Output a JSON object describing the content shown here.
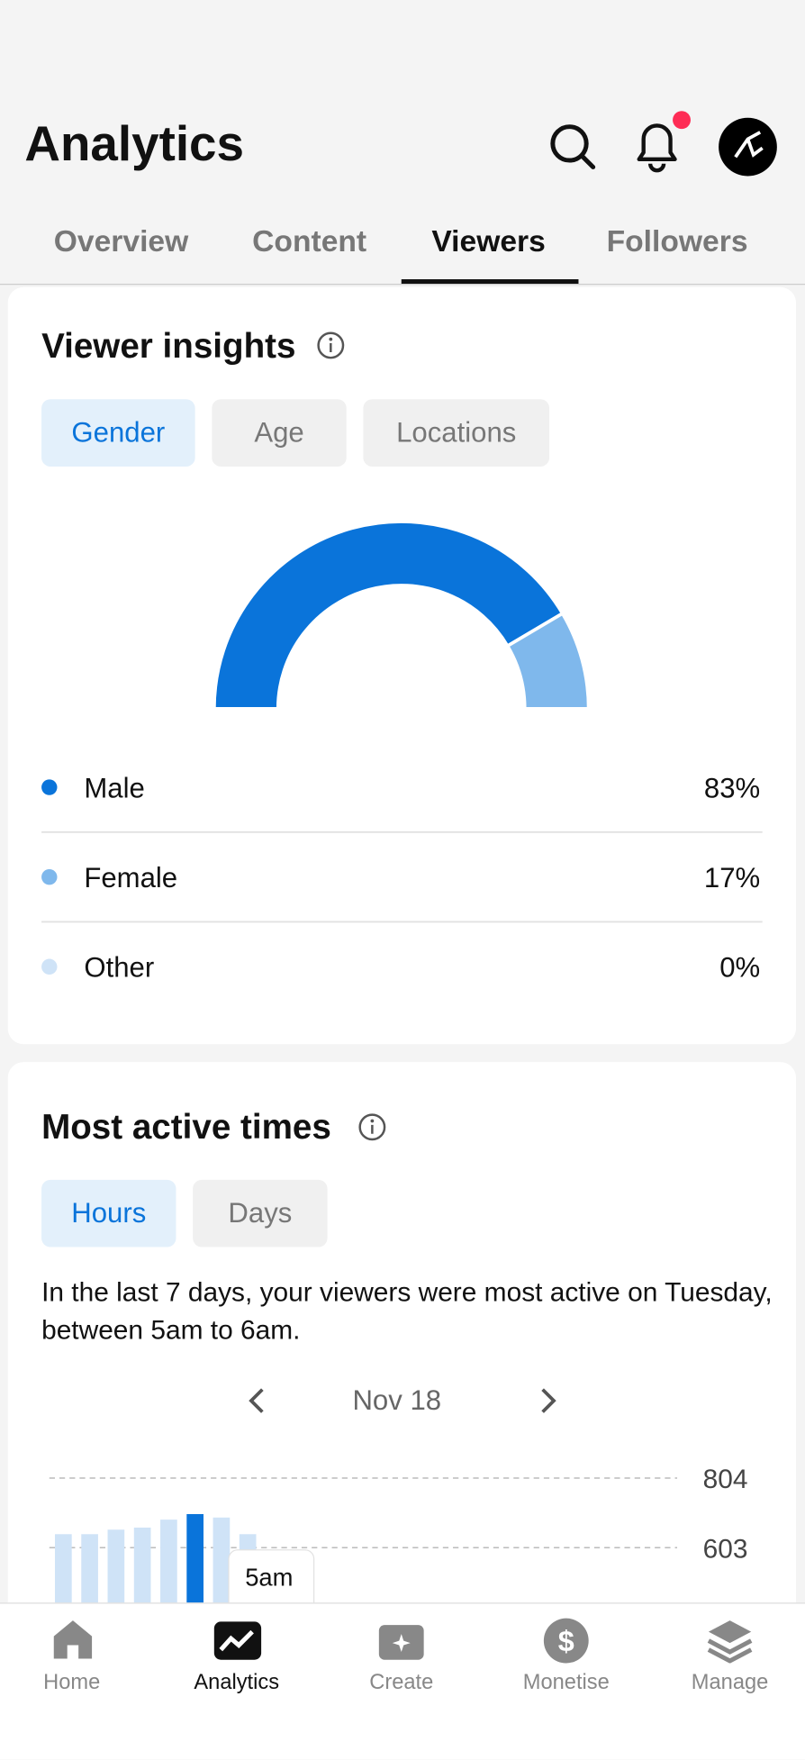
{
  "header": {
    "title": "Analytics"
  },
  "tabs": [
    "Overview",
    "Content",
    "Viewers",
    "Followers"
  ],
  "viewer_insights": {
    "title": "Viewer insights",
    "filters": [
      "Gender",
      "Age",
      "Locations"
    ],
    "chart_data": {
      "type": "pie",
      "categories": [
        "Male",
        "Female",
        "Other"
      ],
      "values": [
        83,
        17,
        0
      ],
      "value_labels": [
        "83%",
        "17%",
        "0%"
      ],
      "colors": [
        "#0a74da",
        "#7fb8ec",
        "#cfe3f7"
      ]
    }
  },
  "most_active": {
    "title": "Most active times",
    "filters": [
      "Hours",
      "Days"
    ],
    "description": "In the last 7 days, your viewers were most active on Tuesday, between 5am to 6am.",
    "date": "Nov 18",
    "tooltip": "5am",
    "chart_data": {
      "type": "bar",
      "values": [
        642,
        642,
        655,
        661,
        684,
        700,
        690,
        642
      ],
      "colors": [
        "#cfe3f7",
        "#0a74da"
      ],
      "ylim": [
        0,
        804
      ],
      "yticks": [
        603,
        804
      ],
      "grid": true
    }
  },
  "nav": [
    "Home",
    "Analytics",
    "Create",
    "Monetise",
    "Manage"
  ]
}
